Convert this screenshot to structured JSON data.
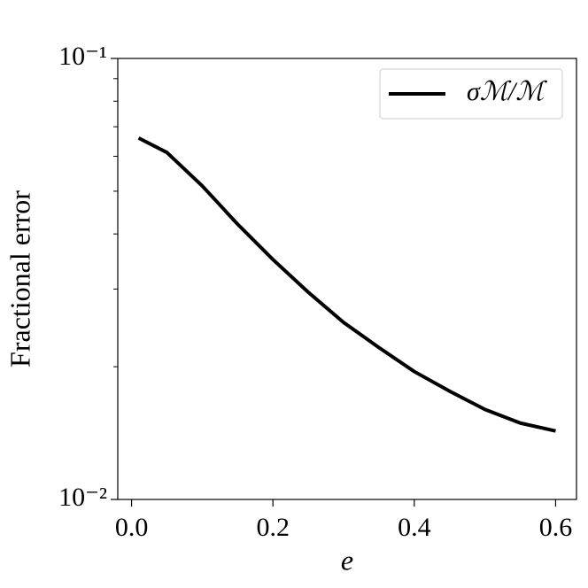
{
  "chart_data": {
    "type": "line",
    "xlabel": "e",
    "ylabel": "Fractional error",
    "x": [
      0.01,
      0.05,
      0.1,
      0.15,
      0.2,
      0.25,
      0.3,
      0.35,
      0.4,
      0.45,
      0.5,
      0.55,
      0.6
    ],
    "series": [
      {
        "name": "σℳ/ℳ",
        "color": "#000000",
        "values": [
          0.066,
          0.0612,
          0.0514,
          0.0421,
          0.035,
          0.0295,
          0.0252,
          0.0221,
          0.0195,
          0.0176,
          0.016,
          0.0149,
          0.0143
        ]
      }
    ],
    "xlim": [
      -0.0195,
      0.6295
    ],
    "xticks": [
      {
        "value": 0,
        "label": "0.0"
      },
      0.2,
      0.4,
      0.6
    ],
    "ylim": [
      0.01,
      0.1
    ],
    "yscale": "log",
    "yticks": [
      {
        "value": 0.01,
        "label": "10⁻²"
      },
      {
        "value": 0.1,
        "label": "10⁻¹"
      }
    ],
    "yminorticks": [
      0.02,
      0.03,
      0.04,
      0.05,
      0.06,
      0.07,
      0.08,
      0.09
    ],
    "legend": "upper right"
  }
}
